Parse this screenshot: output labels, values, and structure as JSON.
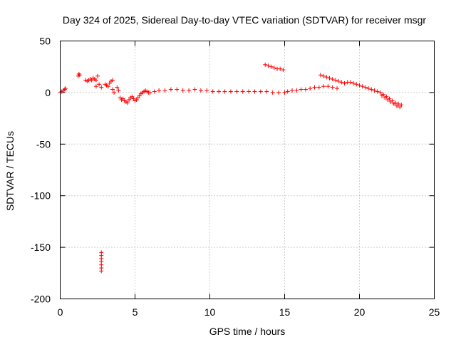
{
  "chart_data": {
    "type": "scatter",
    "title": "Day 324 of 2025, Sidereal Day-to-day VTEC variation (SDTVAR) for receiver msgr",
    "xlabel": "GPS time / hours",
    "ylabel": "SDTVAR / TECUs",
    "xlim": [
      0,
      25
    ],
    "ylim": [
      -200,
      50
    ],
    "xticks": [
      "0",
      "5",
      "10",
      "15",
      "20",
      "25"
    ],
    "yticks": [
      "50",
      "0",
      "-50",
      "-100",
      "-150",
      "-200"
    ],
    "grid": true,
    "marker": "+",
    "series_color": "#ff0000",
    "series": [
      {
        "name": "SDTVAR",
        "x": [
          0.0,
          0.1,
          0.2,
          0.3,
          0.35,
          1.2,
          1.25,
          1.3,
          1.7,
          1.8,
          1.9,
          2.0,
          2.1,
          2.2,
          2.3,
          2.4,
          2.5,
          2.4,
          2.6,
          2.75,
          2.75,
          2.75,
          2.75,
          2.75,
          2.75,
          2.75,
          2.75,
          3.0,
          3.1,
          3.2,
          3.3,
          3.4,
          3.5,
          3.6,
          3.5,
          3.8,
          3.9,
          4.0,
          4.1,
          4.2,
          4.3,
          4.4,
          4.5,
          4.6,
          4.7,
          4.8,
          4.9,
          5.0,
          5.1,
          5.2,
          5.3,
          5.4,
          5.5,
          5.6,
          5.7,
          5.8,
          5.9,
          6.0,
          6.3,
          6.6,
          7.0,
          7.4,
          7.8,
          8.2,
          8.6,
          9.0,
          9.4,
          9.8,
          10.2,
          10.6,
          11.0,
          11.4,
          11.8,
          12.2,
          12.6,
          13.0,
          13.4,
          13.8,
          14.2,
          14.6,
          15.0,
          13.7,
          13.9,
          14.1,
          14.3,
          14.5,
          14.7,
          14.9,
          15.2,
          15.5,
          15.8,
          16.1,
          16.4,
          16.7,
          17.0,
          17.3,
          17.6,
          17.9,
          18.2,
          18.5,
          17.4,
          17.6,
          17.8,
          18.0,
          18.2,
          18.4,
          18.6,
          18.8,
          19.0,
          19.2,
          19.4,
          19.6,
          19.8,
          20.0,
          20.2,
          20.4,
          20.6,
          20.8,
          21.0,
          21.2,
          21.4,
          21.6,
          21.8,
          22.0,
          22.2,
          22.4,
          22.6,
          22.8,
          21.5,
          21.7,
          21.9,
          22.1,
          22.3,
          22.5,
          22.7
        ],
        "y": [
          0,
          1,
          2,
          3,
          4,
          16,
          18,
          17,
          12,
          11,
          12,
          13,
          12,
          14,
          13,
          12,
          16,
          6,
          8,
          5,
          -155,
          -158,
          -161,
          -164,
          -167,
          -170,
          -173,
          8,
          7,
          6,
          9,
          11,
          3,
          0,
          12,
          5,
          2,
          -5,
          -7,
          -6,
          -8,
          -9,
          -10,
          -7,
          -5,
          -4,
          -6,
          -8,
          -7,
          -5,
          -3,
          -1,
          0,
          1,
          2,
          1,
          0,
          0,
          1,
          2,
          2,
          3,
          3,
          2,
          2,
          3,
          2,
          2,
          1,
          1,
          1,
          1,
          1,
          1,
          1,
          1,
          1,
          1,
          0,
          0,
          0,
          27,
          26,
          25,
          24,
          23,
          23,
          22,
          1,
          2,
          2,
          3,
          3,
          4,
          5,
          5,
          6,
          6,
          5,
          4,
          17,
          16,
          15,
          14,
          13,
          12,
          11,
          10,
          9,
          10,
          10,
          9,
          8,
          7,
          6,
          5,
          4,
          3,
          2,
          1,
          0,
          -2,
          -4,
          -6,
          -8,
          -10,
          -11,
          -12,
          -3,
          -5,
          -7,
          -9,
          -11,
          -13,
          -14
        ]
      }
    ]
  }
}
